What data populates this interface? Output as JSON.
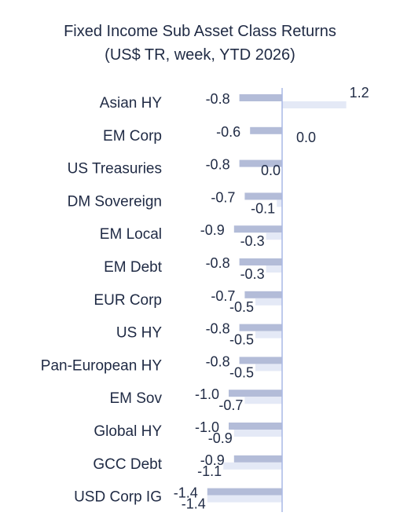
{
  "chart_data": {
    "type": "bar",
    "orientation": "horizontal",
    "title": "Fixed Income Sub Asset Class Returns",
    "subtitle": "(US$ TR, week, YTD 2026)",
    "categories": [
      "Asian HY",
      "EM Corp",
      "US Treasuries",
      "DM Sovereign",
      "EM Local",
      "EM Debt",
      "EUR Corp",
      "US HY",
      "Pan-European HY",
      "EM Sov",
      "Global HY",
      "GCC Debt",
      "USD Corp IG"
    ],
    "series": [
      {
        "values": [
          -0.8,
          -0.6,
          -0.8,
          -0.7,
          -0.9,
          -0.8,
          -0.7,
          -0.8,
          -0.8,
          -1.0,
          -1.0,
          -0.9,
          -1.4
        ],
        "color": "#b3bcd8"
      },
      {
        "values": [
          1.2,
          0.0,
          0.0,
          -0.1,
          -0.3,
          -0.3,
          -0.5,
          -0.5,
          -0.5,
          -0.7,
          -0.9,
          -1.1,
          -1.4
        ],
        "color": "#e4e9f6"
      }
    ],
    "axis_color": "#a9b8e6",
    "grid": false,
    "legend": "none",
    "data_labels": true
  }
}
